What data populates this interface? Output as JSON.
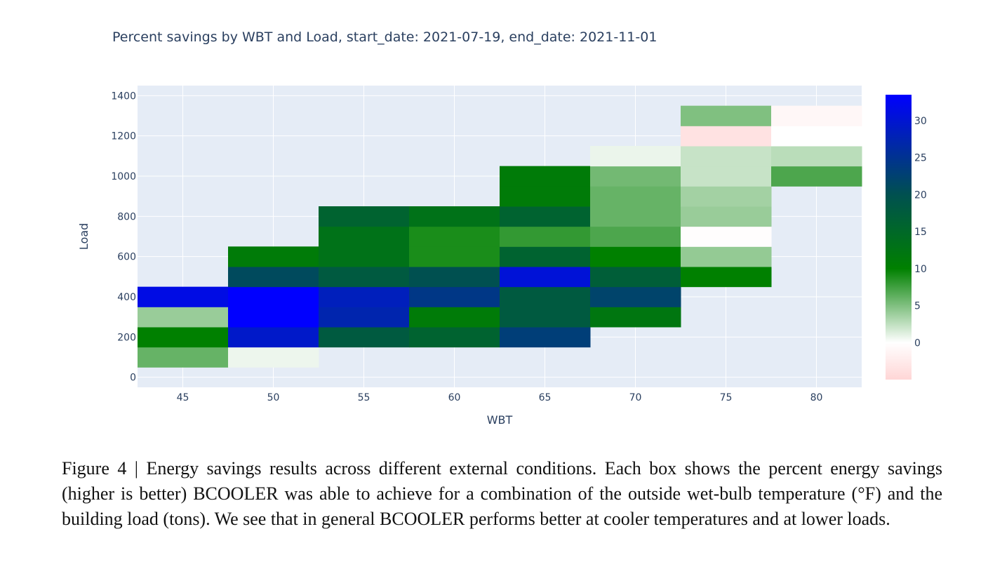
{
  "chart_data": {
    "type": "heatmap",
    "title": "Percent savings by WBT and Load, start_date: 2021-07-19, end_date: 2021-11-01",
    "xlabel": "WBT",
    "ylabel": "Load",
    "xlim": [
      42.5,
      82.5
    ],
    "ylim": [
      -50,
      1450
    ],
    "x_ticks": [
      45,
      50,
      55,
      60,
      65,
      70,
      75,
      80
    ],
    "y_ticks": [
      0,
      200,
      400,
      600,
      800,
      1000,
      1200,
      1400
    ],
    "x_bin_width": 5,
    "y_bin_height": 100,
    "grid": true,
    "colorscale": [
      [
        -5,
        "#ffd6d6"
      ],
      [
        0,
        "#ffffff"
      ],
      [
        10,
        "#008000"
      ],
      [
        20,
        "#005050"
      ],
      [
        33,
        "#0000ff"
      ]
    ],
    "colorbar_range": [
      -5,
      33.5
    ],
    "colorbar_ticks": [
      0,
      5,
      10,
      15,
      20,
      25,
      30
    ],
    "cells": [
      {
        "x": 45,
        "y": 100,
        "value": 6
      },
      {
        "x": 45,
        "y": 200,
        "value": 10
      },
      {
        "x": 45,
        "y": 300,
        "value": 4
      },
      {
        "x": 45,
        "y": 400,
        "value": 31
      },
      {
        "x": 50,
        "y": 100,
        "value": 0.7
      },
      {
        "x": 50,
        "y": 200,
        "value": 29
      },
      {
        "x": 50,
        "y": 300,
        "value": 33
      },
      {
        "x": 50,
        "y": 400,
        "value": 33
      },
      {
        "x": 50,
        "y": 500,
        "value": 21
      },
      {
        "x": 50,
        "y": 600,
        "value": 11
      },
      {
        "x": 55,
        "y": 200,
        "value": 18
      },
      {
        "x": 55,
        "y": 300,
        "value": 27
      },
      {
        "x": 55,
        "y": 400,
        "value": 28
      },
      {
        "x": 55,
        "y": 500,
        "value": 18
      },
      {
        "x": 55,
        "y": 600,
        "value": 13
      },
      {
        "x": 55,
        "y": 700,
        "value": 13
      },
      {
        "x": 55,
        "y": 800,
        "value": 16
      },
      {
        "x": 60,
        "y": 200,
        "value": 16
      },
      {
        "x": 60,
        "y": 300,
        "value": 11
      },
      {
        "x": 60,
        "y": 400,
        "value": 24
      },
      {
        "x": 60,
        "y": 500,
        "value": 20
      },
      {
        "x": 60,
        "y": 600,
        "value": 9
      },
      {
        "x": 60,
        "y": 700,
        "value": 9
      },
      {
        "x": 60,
        "y": 800,
        "value": 13
      },
      {
        "x": 65,
        "y": 200,
        "value": 23
      },
      {
        "x": 65,
        "y": 300,
        "value": 18
      },
      {
        "x": 65,
        "y": 400,
        "value": 18
      },
      {
        "x": 65,
        "y": 500,
        "value": 30
      },
      {
        "x": 65,
        "y": 600,
        "value": 16
      },
      {
        "x": 65,
        "y": 700,
        "value": 8
      },
      {
        "x": 65,
        "y": 800,
        "value": 16
      },
      {
        "x": 65,
        "y": 900,
        "value": 11
      },
      {
        "x": 65,
        "y": 1000,
        "value": 11
      },
      {
        "x": 70,
        "y": 300,
        "value": 12
      },
      {
        "x": 70,
        "y": 400,
        "value": 22
      },
      {
        "x": 70,
        "y": 500,
        "value": 17
      },
      {
        "x": 70,
        "y": 600,
        "value": 10
      },
      {
        "x": 70,
        "y": 700,
        "value": 7
      },
      {
        "x": 70,
        "y": 800,
        "value": 6
      },
      {
        "x": 70,
        "y": 900,
        "value": 6
      },
      {
        "x": 70,
        "y": 1000,
        "value": 5.5
      },
      {
        "x": 70,
        "y": 1100,
        "value": 0.8
      },
      {
        "x": 75,
        "y": 500,
        "value": 10
      },
      {
        "x": 75,
        "y": 600,
        "value": 4.2
      },
      {
        "x": 75,
        "y": 700,
        "value": -0.3
      },
      {
        "x": 75,
        "y": 800,
        "value": 4
      },
      {
        "x": 75,
        "y": 900,
        "value": 3.6
      },
      {
        "x": 75,
        "y": 1000,
        "value": 2.2
      },
      {
        "x": 75,
        "y": 1100,
        "value": 2.2
      },
      {
        "x": 75,
        "y": 1200,
        "value": -3.5
      },
      {
        "x": 75,
        "y": 1300,
        "value": 5
      },
      {
        "x": 80,
        "y": 1000,
        "value": 7
      },
      {
        "x": 80,
        "y": 1100,
        "value": 2.7
      },
      {
        "x": 80,
        "y": 1200,
        "value": 0
      },
      {
        "x": 80,
        "y": 1300,
        "value": -1
      }
    ]
  },
  "caption": "Figure 4 | Energy savings results across different external conditions. Each box shows the percent energy savings (higher is better) BCOOLER was able to achieve for a combination of the outside wet-bulb temperature (°F) and the building load (tons). We see that in general BCOOLER performs better at cooler temperatures and at lower loads."
}
